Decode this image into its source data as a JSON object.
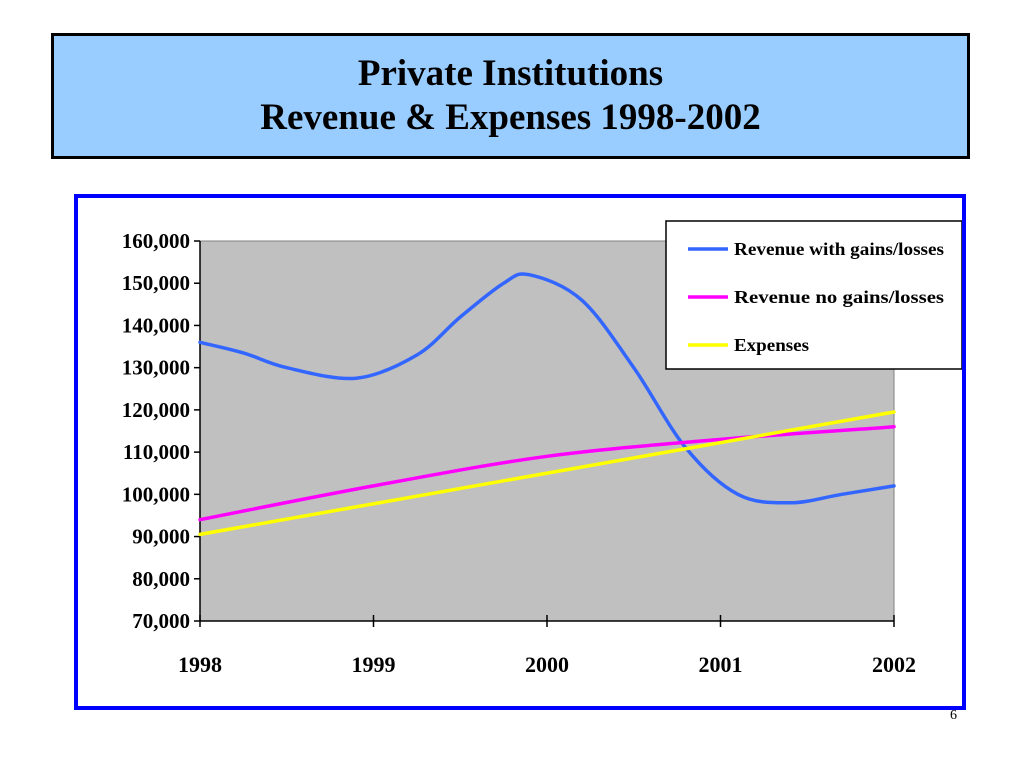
{
  "slide": {
    "title_line1": "Private Institutions",
    "title_line2": "Revenue & Expenses 1998-2002",
    "page_number": "6",
    "title_bg_color": "#99ccff",
    "frame_color": "#0000ff"
  },
  "chart_data": {
    "type": "line",
    "x": [
      1998,
      1999,
      2000,
      2001,
      2002
    ],
    "x_tick_labels": [
      "1998",
      "1999",
      "2000",
      "2001",
      "2002"
    ],
    "ylim": [
      70000,
      160000
    ],
    "y_tick_labels": [
      "160,000",
      "150,000",
      "140,000",
      "130,000",
      "120,000",
      "110,000",
      "100,000",
      "90,000",
      "80,000",
      "70,000"
    ],
    "plot_bg_color": "#c0c0c0",
    "grid": false,
    "legend_position": "top-right",
    "series": [
      {
        "name": "Revenue with gains/losses",
        "color": "#3366ff",
        "smooth": true,
        "points": [
          [
            1998,
            136000
          ],
          [
            1998.25,
            133500
          ],
          [
            1998.5,
            130000
          ],
          [
            1998.9,
            127500
          ],
          [
            1999.25,
            133000
          ],
          [
            1999.5,
            142000
          ],
          [
            1999.75,
            150000
          ],
          [
            1999.9,
            152000
          ],
          [
            2000.2,
            146000
          ],
          [
            2000.5,
            130000
          ],
          [
            2000.8,
            111000
          ],
          [
            2001.1,
            100000
          ],
          [
            2001.4,
            98000
          ],
          [
            2001.7,
            100000
          ],
          [
            2002,
            102000
          ]
        ]
      },
      {
        "name": "Revenue no gains/losses",
        "color": "#ff00ff",
        "smooth": true,
        "points": [
          [
            1998,
            94000
          ],
          [
            1999,
            102000
          ],
          [
            2000,
            109000
          ],
          [
            2001,
            113000
          ],
          [
            2002,
            116000
          ]
        ]
      },
      {
        "name": "Expenses",
        "color": "#ffff00",
        "smooth": false,
        "points": [
          [
            1998,
            90500
          ],
          [
            2002,
            119500
          ]
        ]
      }
    ]
  }
}
